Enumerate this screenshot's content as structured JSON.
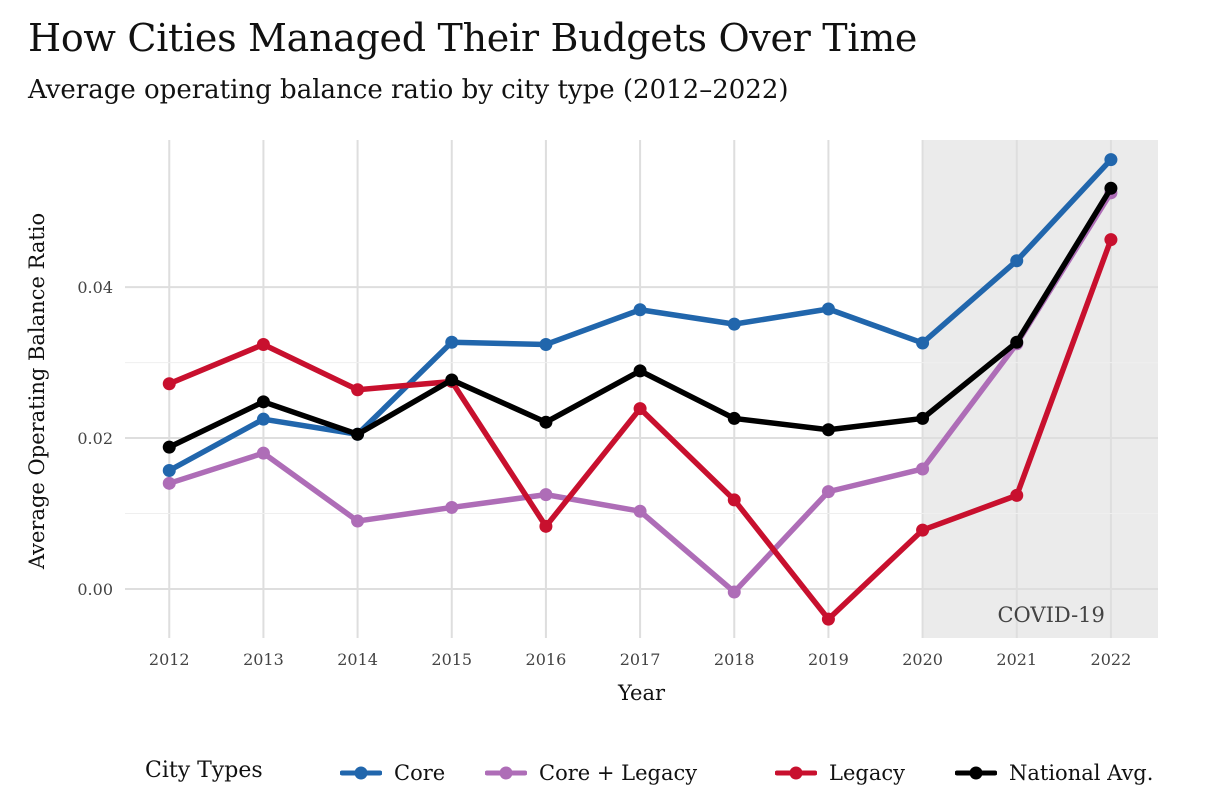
{
  "title": "How Cities Managed Their Budgets Over Time",
  "subtitle": "Average operating balance ratio by city type (2012–2022)",
  "chart_data": {
    "type": "line",
    "title": "How Cities Managed Their Budgets Over Time",
    "subtitle": "Average operating balance ratio by city type (2012–2022)",
    "xlabel": "Year",
    "ylabel": "Average Operating Balance Ratio",
    "x": [
      2012,
      2013,
      2014,
      2015,
      2016,
      2017,
      2018,
      2019,
      2020,
      2021,
      2022
    ],
    "x_tick_labels": [
      "2012",
      "2013",
      "2014",
      "2015",
      "2016",
      "2017",
      "2018",
      "2019",
      "2020",
      "2021",
      "2022"
    ],
    "y_ticks": [
      0.0,
      0.02,
      0.04
    ],
    "y_tick_labels": [
      "0.00",
      "0.02",
      "0.04"
    ],
    "ylim": [
      -0.0065,
      0.0595
    ],
    "grid": true,
    "shaded_region": {
      "x_start": 2020,
      "label": "COVID-19",
      "color": "#ebebeb"
    },
    "legend": {
      "title": "City Types",
      "position": "bottom"
    },
    "series": [
      {
        "name": "Core",
        "color": "#2166ac",
        "values": [
          0.0157,
          0.0225,
          0.0205,
          0.0327,
          0.0324,
          0.037,
          0.0351,
          0.0371,
          0.0326,
          0.0435,
          0.0569
        ]
      },
      {
        "name": "Core + Legacy",
        "color": "#ae6db7",
        "values": [
          0.014,
          0.018,
          0.009,
          0.0108,
          0.0125,
          0.0103,
          -0.0004,
          0.0129,
          0.0159,
          0.0325,
          0.0525
        ]
      },
      {
        "name": "Legacy",
        "color": "#c8102e",
        "values": [
          0.0272,
          0.0324,
          0.0264,
          0.0275,
          0.0083,
          0.0239,
          0.0118,
          -0.004,
          0.0078,
          0.0124,
          0.0463
        ]
      },
      {
        "name": "National Avg.",
        "color": "#000000",
        "values": [
          0.0188,
          0.0248,
          0.0205,
          0.0277,
          0.0221,
          0.0289,
          0.0226,
          0.0211,
          0.0226,
          0.0327,
          0.0531
        ]
      }
    ]
  }
}
